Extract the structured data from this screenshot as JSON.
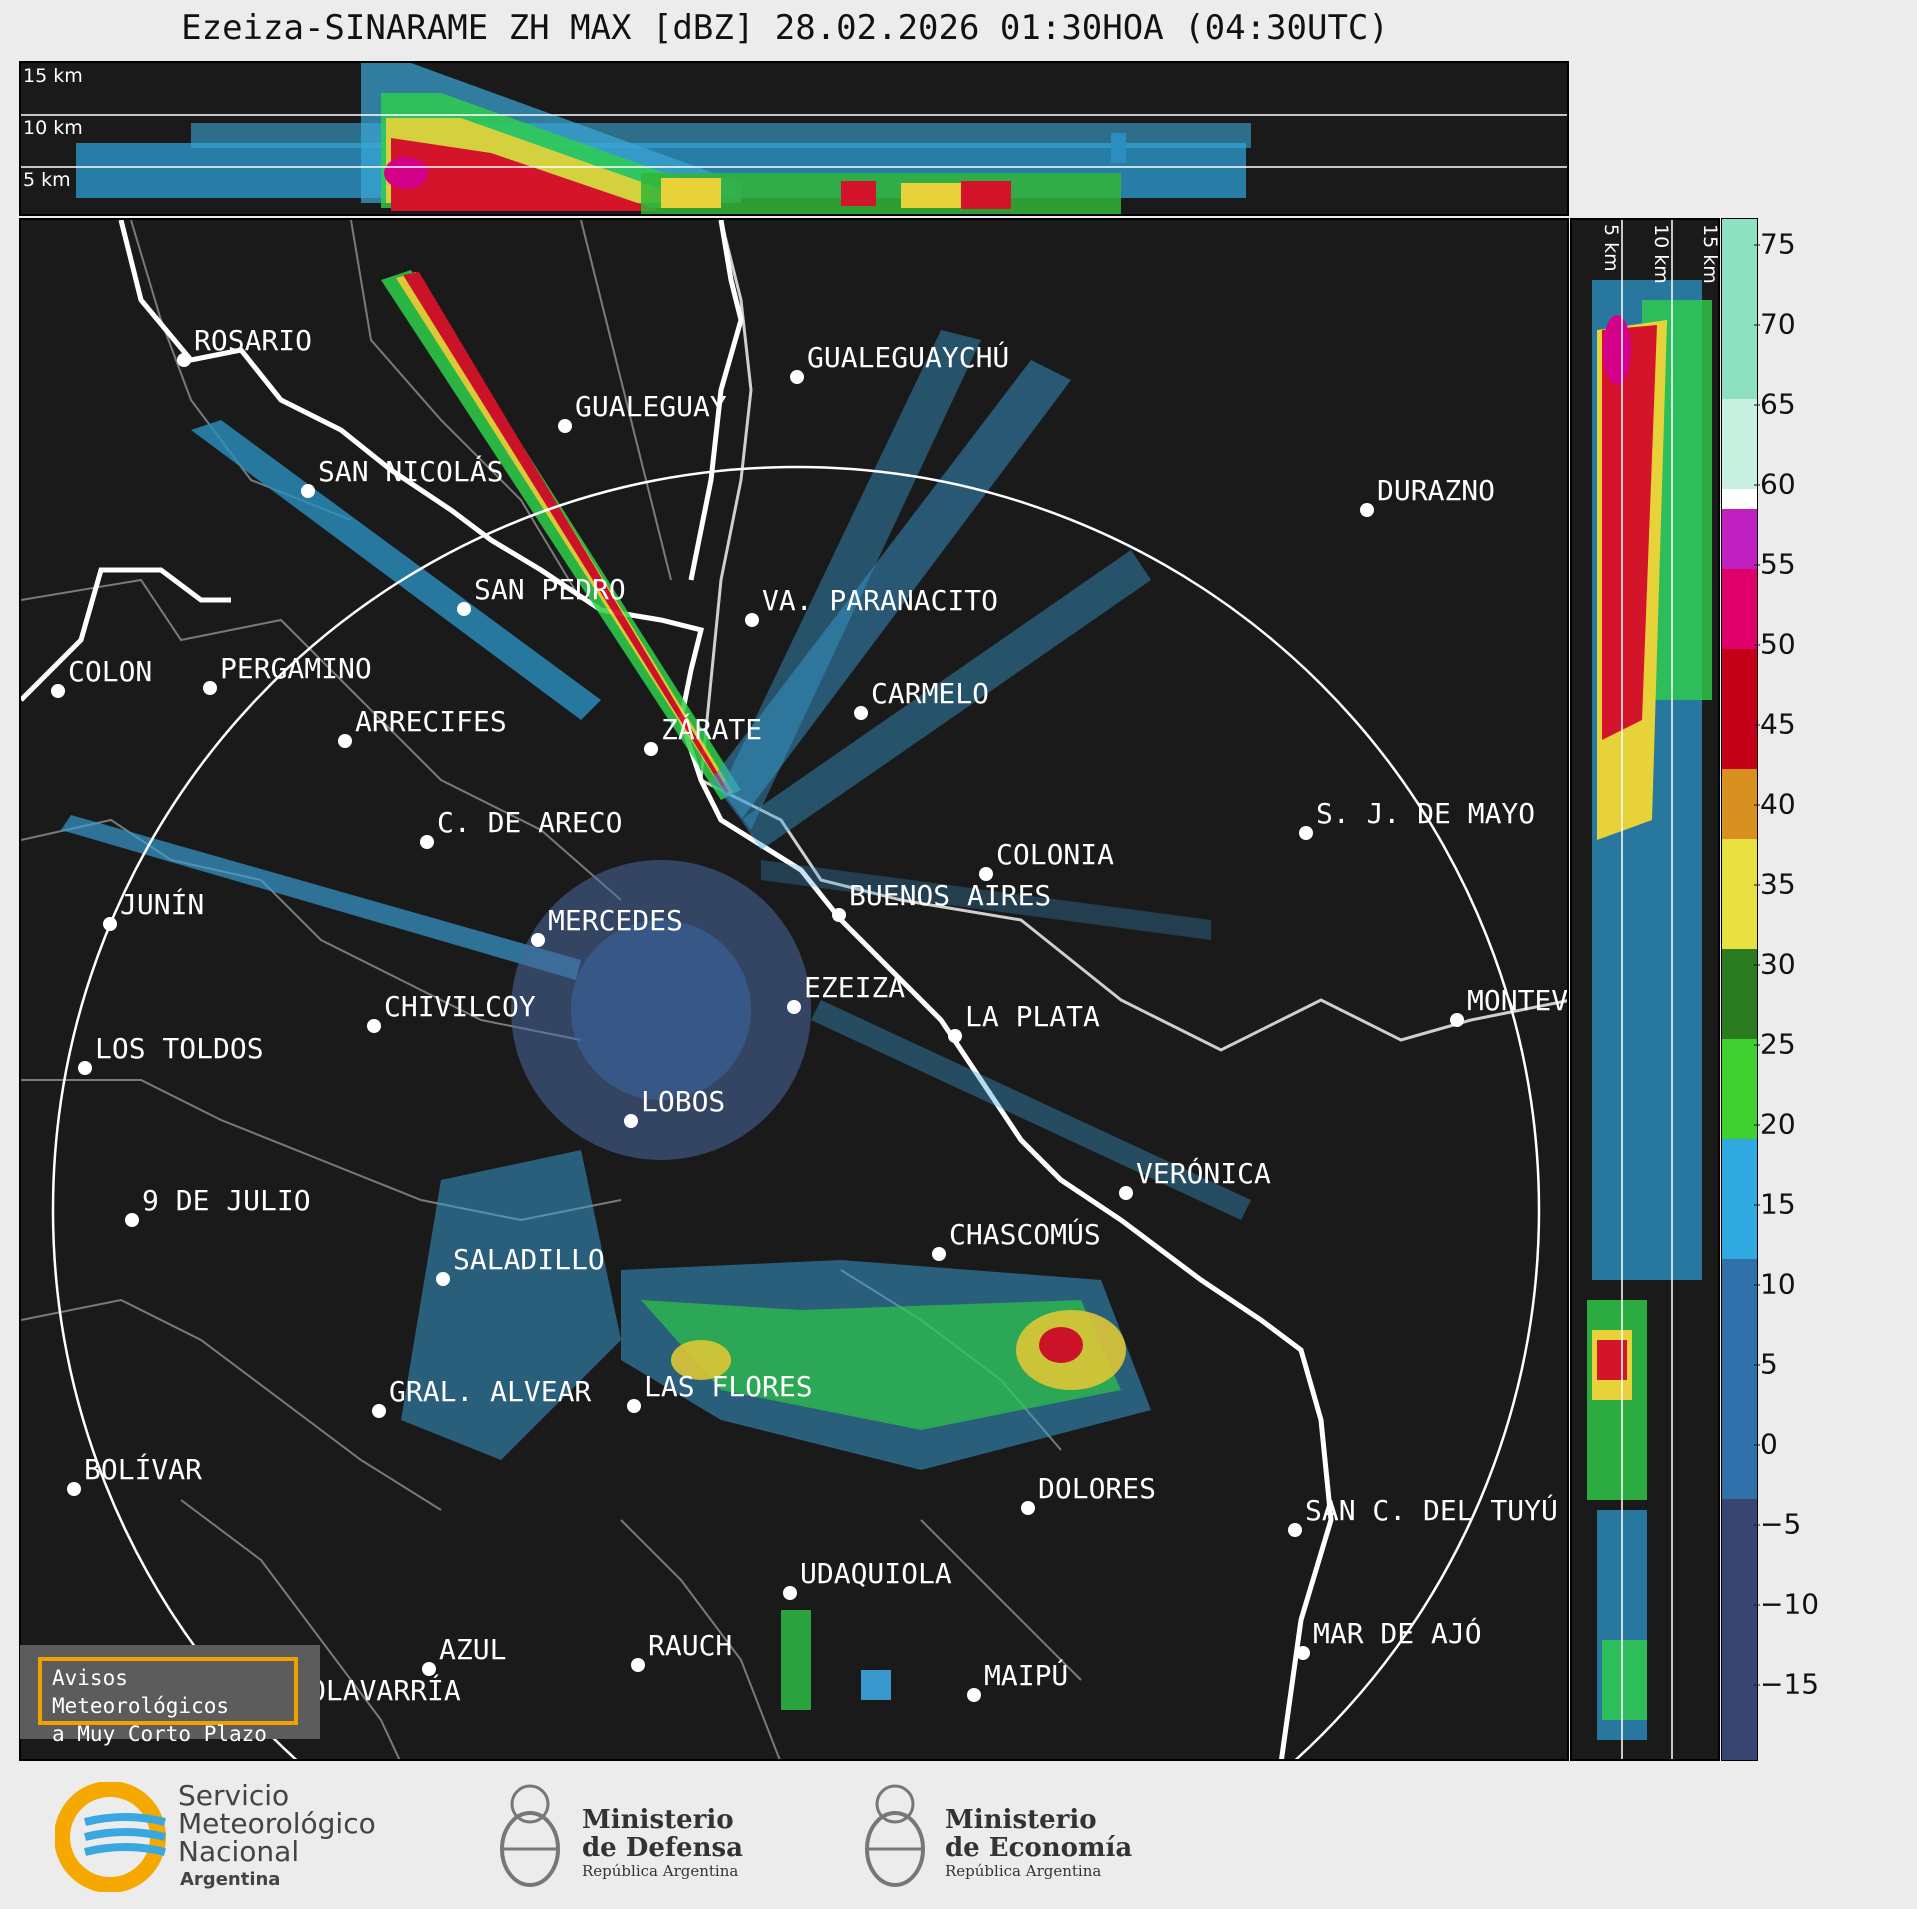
{
  "title": "Ezeiza-SINARAME ZH MAX [dBZ] 28.02.2026 01:30HOA (04:30UTC)",
  "height_labels_top": [
    "15 km",
    "10 km",
    "5 km"
  ],
  "height_labels_side": [
    "5 km",
    "10 km",
    "15 km"
  ],
  "colorbar": {
    "unit": "dBZ",
    "ticks": [
      "75",
      "70",
      "65",
      "60",
      "55",
      "50",
      "45",
      "40",
      "35",
      "30",
      "25",
      "20",
      "15",
      "10",
      "5",
      "0",
      "−5",
      "−10",
      "−15"
    ],
    "range": [
      -20,
      77
    ]
  },
  "cities": [
    {
      "name": "ROSARIO"
    },
    {
      "name": "GUALEGUAYCHÚ"
    },
    {
      "name": "GUALEGUAY"
    },
    {
      "name": "SAN NICOLÁS"
    },
    {
      "name": "DURAZNO"
    },
    {
      "name": "SAN PEDRO"
    },
    {
      "name": "VA. PARANACITO"
    },
    {
      "name": "COLON"
    },
    {
      "name": "PERGAMINO"
    },
    {
      "name": "CARMELO"
    },
    {
      "name": "ARRECIFES"
    },
    {
      "name": "ZÁRATE"
    },
    {
      "name": "S. J. DE MAYO"
    },
    {
      "name": "C. DE ARECO"
    },
    {
      "name": "COLONIA"
    },
    {
      "name": "JUNÍN"
    },
    {
      "name": "BUENOS AIRES"
    },
    {
      "name": "MERCEDES"
    },
    {
      "name": "EZEIZA"
    },
    {
      "name": "MONTEVIDEO"
    },
    {
      "name": "CHIVILCOY"
    },
    {
      "name": "LA PLATA"
    },
    {
      "name": "LOS TOLDOS"
    },
    {
      "name": "LOBOS"
    },
    {
      "name": "VERÓNICA"
    },
    {
      "name": "9 DE JULIO"
    },
    {
      "name": "CHASCOMÚS"
    },
    {
      "name": "SALADILLO"
    },
    {
      "name": "GRAL. ALVEAR"
    },
    {
      "name": "LAS FLORES"
    },
    {
      "name": "BOLÍVAR"
    },
    {
      "name": "DOLORES"
    },
    {
      "name": "SAN C. DEL TUYÚ"
    },
    {
      "name": "UDAQUIOLA"
    },
    {
      "name": "MAR DE AJÓ"
    },
    {
      "name": "RAUCH"
    },
    {
      "name": "AZUL"
    },
    {
      "name": "OLAVARRÍA"
    },
    {
      "name": "MAIPÚ"
    }
  ],
  "warning_box": {
    "line1": "Avisos Meteorológicos",
    "line2": "a Muy Corto Plazo"
  },
  "footer": {
    "smn": {
      "l1": "Servicio",
      "l2": "Meteorológico",
      "l3": "Nacional",
      "l4": "Argentina"
    },
    "defensa": {
      "l1": "Ministerio",
      "l2": "de Defensa",
      "l3": "República Argentina"
    },
    "economia": {
      "l1": "Ministerio",
      "l2": "de Economía",
      "l3": "República Argentina"
    }
  },
  "colors": {
    "background": "#1a1a1a",
    "range_ring": "#ffffff",
    "borders": "#808080",
    "accent_box": "#f0a000"
  }
}
